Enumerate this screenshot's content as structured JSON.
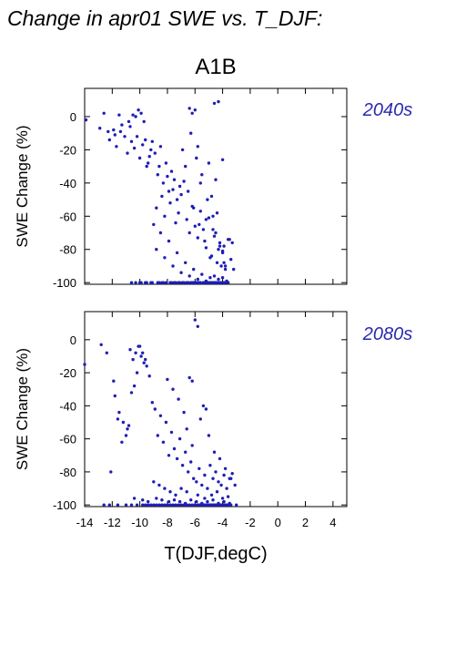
{
  "figure": {
    "title": "Change in apr01 SWE vs. T_DJF:",
    "scenario": "A1B",
    "colors": {
      "points": "#1f1fb4",
      "axes": "#000000",
      "period_label": "#2a2ab0"
    }
  },
  "chart_data": [
    {
      "type": "scatter",
      "period_label": "2040s",
      "ylabel": "SWE Change (%)",
      "xlabel": "",
      "xlim": [
        -14,
        5
      ],
      "ylim": [
        -101,
        17
      ],
      "xticks": [
        "-14",
        "-12",
        "-10",
        "-8",
        "-6",
        "-4",
        "-2",
        "0",
        "2",
        "4"
      ],
      "yticks": [
        "0",
        "-20",
        "-40",
        "-60",
        "-80",
        "-100"
      ],
      "xticks_labeled": false,
      "grid": false,
      "points_x": [
        -13.9,
        -12.9,
        -12.6,
        -12.3,
        -12.2,
        -11.9,
        -11.8,
        -11.5,
        -11.3,
        -11.1,
        -11.7,
        -11.4,
        -10.9,
        -10.6,
        -10.4,
        -10.2,
        -10.0,
        -9.8,
        -9.6,
        -9.4,
        -9.2,
        -9.9,
        -10.3,
        -9.7,
        -10.1,
        -10.5,
        -9.5,
        -9.3,
        -10.7,
        -10.8,
        -9.1,
        -8.9,
        -8.7,
        -8.5,
        -8.3,
        -8.1,
        -7.9,
        -7.7,
        -7.5,
        -7.3,
        -7.1,
        -8.8,
        -8.6,
        -8.4,
        -8.2,
        -8.0,
        -7.8,
        -7.6,
        -7.4,
        -7.2,
        -7.0,
        -6.8,
        -6.6,
        -6.4,
        -6.2,
        -6.0,
        -5.8,
        -5.6,
        -5.4,
        -5.2,
        -5.0,
        -4.8,
        -4.6,
        -4.4,
        -4.2,
        -4.0,
        -3.8,
        -3.6,
        -3.4,
        -3.2,
        -6.9,
        -6.7,
        -6.5,
        -6.3,
        -6.1,
        -5.9,
        -5.7,
        -5.5,
        -5.3,
        -5.1,
        -4.9,
        -4.7,
        -4.5,
        -4.3,
        -4.1,
        -3.9,
        -6.4,
        -6.2,
        -6.0,
        -5.8,
        -5.6,
        -5.2,
        -5.0,
        -4.8,
        -4.7,
        -4.5,
        -4.4,
        -4.2,
        -4.0,
        -3.9,
        -3.8,
        -3.5,
        -3.3,
        -9.0,
        -8.8,
        -8.5,
        -8.2,
        -7.9,
        -7.6,
        -7.3,
        -7.0,
        -6.7,
        -6.4,
        -6.1,
        -5.8,
        -5.5,
        -5.2,
        -4.9,
        -4.6,
        -4.3,
        -4.0,
        -3.7,
        -10.0,
        -9.6,
        -9.2,
        -8.6,
        -8.3,
        -7.7,
        -7.4,
        -7.1,
        -6.8,
        -6.5,
        -6.2,
        -5.9,
        -5.6,
        -5.3,
        -5.0,
        -4.7,
        -4.4,
        -4.1,
        -3.8,
        -6.6,
        -6.3,
        -5.9,
        -5.4,
        -5.1,
        -4.6,
        -4.3,
        -3.6,
        -7.5,
        -7.2,
        -6.9,
        -5.7,
        -5.3,
        -4.9,
        -4.5,
        -4.2,
        -3.9,
        -10.6,
        -10.3,
        -9.9,
        -9.5,
        -9.1,
        -8.7,
        -8.4,
        -8.1,
        -7.8,
        -7.5,
        -7.2,
        -6.9,
        -6.6,
        -6.3,
        -6.0,
        -5.7,
        -5.4,
        -5.1,
        -4.8,
        -4.5,
        -4.2,
        -3.9,
        -3.6,
        -6.5,
        -6.1,
        -5.8,
        -5.0,
        -4.6,
        -4.3,
        -4.0
      ],
      "points_y": [
        -2,
        -7,
        2,
        -9,
        -14,
        -8,
        -11,
        1,
        -5,
        -12,
        -18,
        -9,
        -22,
        -15,
        -19,
        -12,
        -25,
        -17,
        -14,
        -28,
        -20,
        2,
        0,
        -3,
        4,
        1,
        -30,
        -24,
        -6,
        -3,
        -15,
        -22,
        -35,
        -18,
        -40,
        -28,
        -45,
        -33,
        -38,
        -50,
        -42,
        -55,
        -30,
        -48,
        -60,
        -36,
        -52,
        -44,
        -64,
        -58,
        -47,
        -39,
        -62,
        -70,
        -54,
        -66,
        -73,
        -57,
        -68,
        -79,
        -61,
        -84,
        -72,
        -88,
        -76,
        -81,
        -90,
        -74,
        -86,
        -92,
        -20,
        -30,
        -45,
        -10,
        -55,
        -25,
        -65,
        -35,
        -75,
        -50,
        -85,
        -60,
        -70,
        -80,
        -90,
        -78,
        5,
        2,
        4,
        -18,
        -40,
        -62,
        -28,
        -48,
        -68,
        -38,
        -58,
        -78,
        -82,
        -88,
        -92,
        -74,
        -76,
        -65,
        -80,
        -70,
        -85,
        -75,
        -90,
        -82,
        -94,
        -88,
        -96,
        -92,
        -98,
        -95,
        -99,
        -97,
        -96,
        -98,
        -97,
        -99,
        -100,
        -100,
        -100,
        -100,
        -100,
        -100,
        -100,
        -100,
        -100,
        -100,
        -100,
        -100,
        -100,
        -100,
        -100,
        -100,
        -100,
        -100,
        -100,
        -100,
        -100,
        -100,
        -100,
        -100,
        -100,
        -100,
        -100,
        -100,
        -100,
        -100,
        -100,
        -100,
        -100,
        -100,
        -100,
        -100,
        -100,
        -100,
        -100,
        -100,
        -100,
        -100,
        -100,
        -100,
        -100,
        -100,
        -100,
        -100,
        -100,
        -100,
        -100,
        -100,
        -100,
        -100,
        -100,
        -100,
        -100,
        -100,
        -100,
        -100,
        -100,
        -100,
        -100,
        8,
        9,
        -26,
        -64,
        -72,
        -80,
        -86
      ]
    },
    {
      "type": "scatter",
      "period_label": "2080s",
      "ylabel": "SWE Change (%)",
      "xlabel": "T(DJF,degC)",
      "xlim": [
        -14,
        5
      ],
      "ylim": [
        -101,
        17
      ],
      "xticks": [
        "-14",
        "-12",
        "-10",
        "-8",
        "-6",
        "-4",
        "-2",
        "0",
        "2",
        "4"
      ],
      "yticks": [
        "0",
        "-20",
        "-40",
        "-60",
        "-80",
        "-100"
      ],
      "xticks_labeled": true,
      "grid": false,
      "points_x": [
        -14.0,
        -12.8,
        -12.4,
        -11.9,
        -12.1,
        -11.6,
        -11.3,
        -11.0,
        -10.8,
        -10.6,
        -10.4,
        -10.2,
        -10.0,
        -9.8,
        -9.6,
        -10.7,
        -10.5,
        -10.3,
        -10.1,
        -9.9,
        -9.7,
        -9.5,
        -9.3,
        -9.1,
        -8.9,
        -11.8,
        -11.5,
        -11.2,
        -10.9,
        -8.7,
        -8.5,
        -8.3,
        -8.1,
        -7.9,
        -7.7,
        -7.5,
        -7.3,
        -7.1,
        -6.9,
        -6.7,
        -6.5,
        -6.3,
        -6.1,
        -5.9,
        -5.7,
        -5.5,
        -5.3,
        -5.1,
        -4.9,
        -4.7,
        -4.5,
        -4.3,
        -4.1,
        -3.9,
        -3.7,
        -3.5,
        -3.3,
        -3.1,
        -6.0,
        -5.8,
        -6.4,
        -6.2,
        -5.4,
        -5.2,
        -8.0,
        -7.6,
        -7.2,
        -6.8,
        -6.6,
        -6.2,
        -5.6,
        -5.0,
        -4.6,
        -4.2,
        -3.8,
        -3.4,
        -9.0,
        -8.6,
        -8.2,
        -7.8,
        -7.4,
        -7.0,
        -6.6,
        -5.8,
        -5.3,
        -4.8,
        -4.4,
        -4.0,
        -3.6,
        -10.4,
        -9.8,
        -9.4,
        -8.8,
        -8.4,
        -7.9,
        -7.5,
        -7.1,
        -6.7,
        -6.3,
        -5.9,
        -5.5,
        -5.1,
        -4.7,
        -4.3,
        -3.9,
        -3.5,
        -12.6,
        -12.2,
        -11.6,
        -11.0,
        -10.6,
        -10.2,
        -9.8,
        -9.4,
        -9.0,
        -8.6,
        -8.2,
        -7.8,
        -7.4,
        -7.0,
        -6.6,
        -6.2,
        -5.8,
        -5.4,
        -5.0,
        -4.6,
        -4.2,
        -3.8,
        -3.4,
        -3.0,
        -9.6,
        -9.2,
        -8.8,
        -8.4,
        -8.0,
        -7.6,
        -7.2,
        -6.8,
        -6.4,
        -6.0,
        -5.6,
        -5.2,
        -4.8,
        -4.4,
        -4.0,
        -3.6,
        -5.7,
        -5.5,
        -5.3,
        -5.1,
        -4.9,
        -4.7,
        -4.5,
        -4.3,
        -4.1,
        -3.9,
        -3.7
      ],
      "points_y": [
        -15,
        -3,
        -8,
        -25,
        -80,
        -48,
        -62,
        -58,
        -52,
        -32,
        -28,
        -20,
        -4,
        -8,
        -12,
        -6,
        -12,
        -8,
        -4,
        -10,
        -14,
        -16,
        -22,
        -38,
        -42,
        -34,
        -44,
        -50,
        -54,
        -58,
        -46,
        -62,
        -50,
        -70,
        -56,
        -66,
        -72,
        -60,
        -76,
        -68,
        -80,
        -74,
        -84,
        -86,
        -78,
        -88,
        -82,
        -90,
        -76,
        -84,
        -80,
        -86,
        -88,
        -82,
        -90,
        -84,
        -81,
        -88,
        12,
        8,
        -23,
        -25,
        -40,
        -42,
        -24,
        -30,
        -36,
        -44,
        -54,
        -64,
        -48,
        -58,
        -68,
        -72,
        -78,
        -84,
        -86,
        -88,
        -90,
        -92,
        -94,
        -90,
        -92,
        -94,
        -96,
        -94,
        -92,
        -96,
        -95,
        -96,
        -97,
        -98,
        -96,
        -97,
        -98,
        -97,
        -98,
        -99,
        -97,
        -98,
        -99,
        -98,
        -97,
        -99,
        -98,
        -99,
        -100,
        -100,
        -100,
        -100,
        -100,
        -100,
        -100,
        -100,
        -100,
        -100,
        -100,
        -100,
        -100,
        -100,
        -100,
        -100,
        -100,
        -100,
        -100,
        -100,
        -100,
        -100,
        -100,
        -100,
        -100,
        -100,
        -100,
        -100,
        -100,
        -100,
        -100,
        -100,
        -100,
        -100,
        -100,
        -100,
        -100,
        -100,
        -100,
        -100,
        -100,
        -100,
        -100,
        -100,
        -100,
        -100,
        -100,
        -100,
        -100,
        -100,
        -100,
        -100,
        -100,
        -100,
        -100
      ]
    }
  ]
}
